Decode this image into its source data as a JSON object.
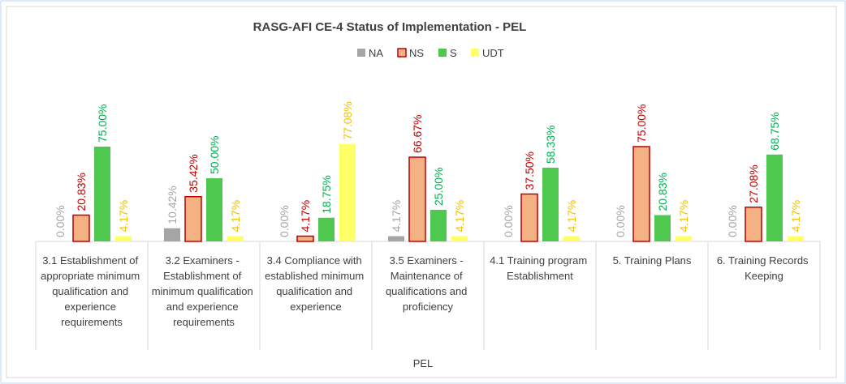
{
  "chart_data": {
    "type": "bar",
    "title": "RASG-AFI CE-4 Status of Implementation - PEL",
    "x_label": "PEL",
    "categories": [
      "3.1 Establishment of appropriate minimum qualification and experience requirements",
      "3.2 Examiners - Establishment of minimum qualification and experience requirements",
      "3.4 Compliance with established minimum qualification and experience",
      "3.5 Examiners - Maintenance of qualifications and proficiency",
      "4.1 Training program Establishment",
      "5. Training Plans",
      "6. Training Records Keeping"
    ],
    "series": [
      {
        "name": "NA",
        "color": "#a5a5a5",
        "label_color": "#a5a5a5",
        "values": [
          0,
          10.42,
          0,
          4.17,
          0,
          0,
          0
        ],
        "value_labels": [
          "0.00%",
          "10.42%",
          "0.00%",
          "4.17%",
          "0.00%",
          "0.00%",
          "0.00%"
        ]
      },
      {
        "name": "NS",
        "color": "#f4b183",
        "edge_color": "#c00000",
        "label_color": "#c00000",
        "values": [
          20.83,
          35.42,
          4.17,
          66.67,
          37.5,
          75,
          27.08
        ],
        "value_labels": [
          "20.83%",
          "35.42%",
          "4.17%",
          "66.67%",
          "37.50%",
          "75.00%",
          "27.08%"
        ]
      },
      {
        "name": "S",
        "color": "#4fc84f",
        "label_color": "#00b050",
        "values": [
          75,
          50,
          18.75,
          25,
          58.33,
          20.83,
          68.75
        ],
        "value_labels": [
          "75.00%",
          "50.00%",
          "18.75%",
          "25.00%",
          "58.33%",
          "20.83%",
          "68.75%"
        ]
      },
      {
        "name": "UDT",
        "color": "#ffff66",
        "label_color": "#f2c200",
        "values": [
          4.17,
          4.17,
          77.08,
          4.17,
          4.17,
          4.17,
          4.17
        ],
        "value_labels": [
          "4.17%",
          "4.17%",
          "77.08%",
          "4.17%",
          "4.17%",
          "4.17%",
          "4.17%"
        ]
      }
    ]
  }
}
